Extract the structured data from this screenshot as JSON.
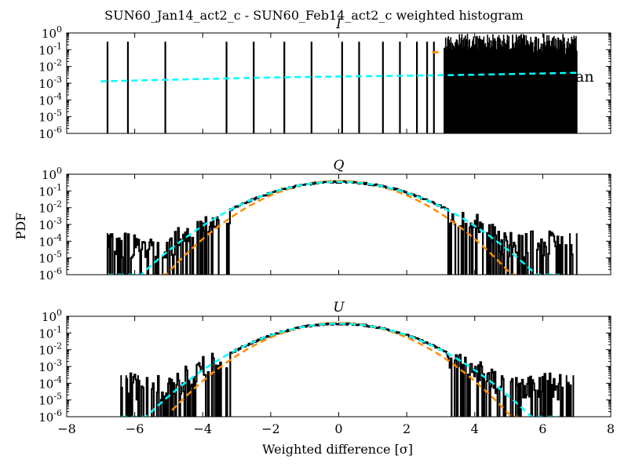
{
  "figure": {
    "suptitle": "SUN60_Jan14_act2_c - SUN60_Feb14_act2_c weighted histogram",
    "ylabel": "PDF",
    "xlabel": "Weighted difference [σ]",
    "legend_fragment": "an"
  },
  "colors": {
    "histogram": "#000000",
    "gaussian_fit": "#00ffff",
    "unit_gaussian": "#ff8c00"
  },
  "chart_data": [
    {
      "type": "line",
      "title": "I",
      "x_range": [
        -8,
        8
      ],
      "y_scale": "log",
      "y_range": [
        1e-06,
        1
      ],
      "y_ticks": [
        "10^0",
        "10^-1",
        "10^-2",
        "10^-3",
        "10^-4",
        "10^-5",
        "10^-6"
      ],
      "x_ticks": [],
      "series": [
        {
          "style": "histogram",
          "sparse_spikes_x": [
            -6.8,
            -6.2,
            -5.1,
            -3.3,
            -2.5,
            -1.6,
            -0.8,
            0.1,
            0.6,
            1.3,
            1.8,
            2.3,
            2.6,
            2.8
          ],
          "dense_region_x": [
            3.1,
            7.0
          ],
          "spike_height": 0.3
        },
        {
          "style": "dashed-cyan",
          "x": [
            -7,
            -4,
            -2,
            0,
            2,
            4,
            6,
            7
          ],
          "y": [
            0.0013,
            0.0018,
            0.0022,
            0.0025,
            0.0028,
            0.0032,
            0.0038,
            0.0042
          ]
        },
        {
          "style": "dashed-orange",
          "x": [
            2.75,
            3.05
          ],
          "y": [
            0.07,
            0.07
          ]
        }
      ]
    },
    {
      "type": "line",
      "title": "Q",
      "x_range": [
        -8,
        8
      ],
      "y_scale": "log",
      "y_range": [
        1e-06,
        1
      ],
      "y_ticks": [
        "10^0",
        "10^-1",
        "10^-2",
        "10^-3",
        "10^-4",
        "10^-5",
        "10^-6"
      ],
      "x_ticks": [],
      "series": [
        {
          "style": "histogram",
          "gaussian_sigma": 1.15,
          "gaussian_peak": 0.35,
          "tail_x_range": [
            -6.8,
            7.0
          ],
          "noise_floor": 1e-06
        },
        {
          "style": "dashed-cyan",
          "function": "gaussian",
          "sigma": 1.15,
          "peak": 0.35,
          "x_range": [
            -6.8,
            6.5
          ]
        },
        {
          "style": "dashed-orange",
          "function": "gaussian",
          "sigma": 1.0,
          "peak": 0.399,
          "x_range": [
            -5.2,
            5.2
          ]
        }
      ]
    },
    {
      "type": "line",
      "title": "U",
      "x_range": [
        -8,
        8
      ],
      "y_scale": "log",
      "y_range": [
        1e-06,
        1
      ],
      "y_ticks": [
        "10^0",
        "10^-1",
        "10^-2",
        "10^-3",
        "10^-4",
        "10^-5",
        "10^-6"
      ],
      "x_ticks": [
        "−8",
        "−6",
        "−4",
        "−2",
        "0",
        "2",
        "4",
        "6",
        "8"
      ],
      "series": [
        {
          "style": "histogram",
          "gaussian_sigma": 1.12,
          "gaussian_peak": 0.36,
          "tail_x_range": [
            -6.4,
            6.9
          ],
          "noise_floor": 1e-06
        },
        {
          "style": "dashed-cyan",
          "function": "gaussian",
          "sigma": 1.12,
          "peak": 0.36,
          "x_range": [
            -6.4,
            6.5
          ]
        },
        {
          "style": "dashed-orange",
          "function": "gaussian",
          "sigma": 1.0,
          "peak": 0.399,
          "x_range": [
            -4.9,
            5.3
          ]
        }
      ]
    }
  ]
}
